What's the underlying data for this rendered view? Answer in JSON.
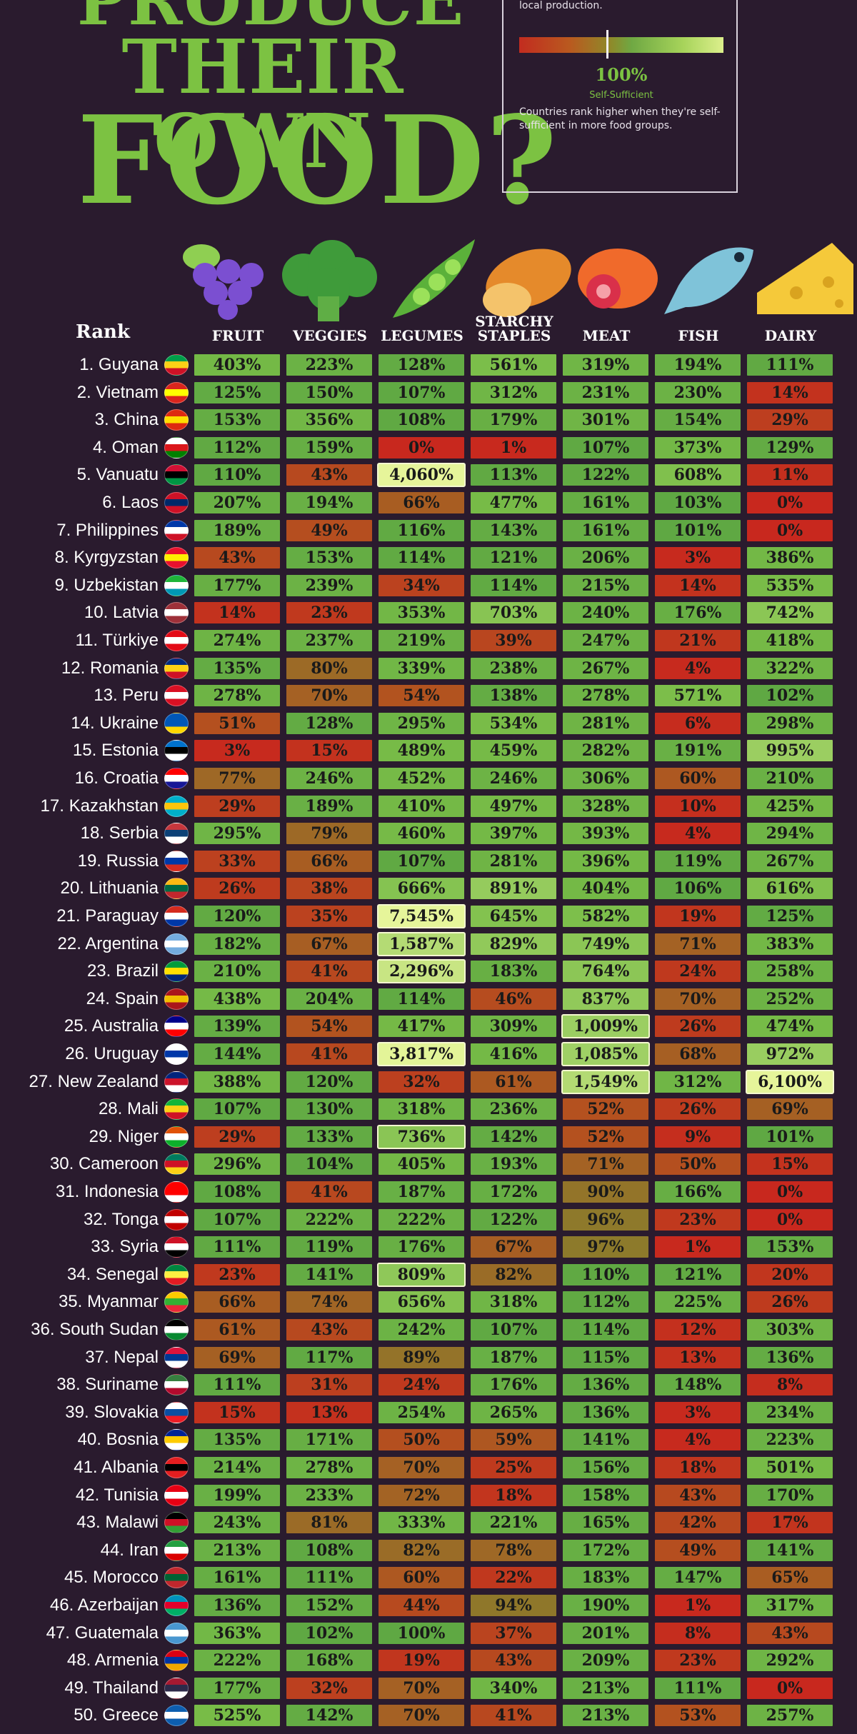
{
  "header": {
    "title_line1": "PRODUCE",
    "title_line2": "THEIR OWN",
    "title_line3": "FOOD?"
  },
  "legend": {
    "description": "percentage of domestic demand met by local production.",
    "scale_value": "100%",
    "scale_label": "Self-Sufficient",
    "note": "Countries rank higher when they're self-sufficient in more food groups.",
    "color_low": "#c22c1f",
    "color_mid": "#6fa843",
    "color_high": "#dcef8c"
  },
  "chart_data": {
    "type": "table",
    "rank_header": "Rank",
    "columns": [
      "FRUIT",
      "VEGGIES",
      "LEGUMES",
      "STARCHY STAPLES",
      "MEAT",
      "FISH",
      "DAIRY"
    ],
    "column_icons": [
      "grapes-icon",
      "broccoli-icon",
      "peas-icon",
      "bread-icon",
      "meat-icon",
      "fish-icon",
      "cheese-icon"
    ],
    "rows": [
      {
        "rank": "1. Guyana",
        "values": [
          403,
          223,
          128,
          561,
          319,
          194,
          111
        ]
      },
      {
        "rank": "2. Vietnam",
        "values": [
          125,
          150,
          107,
          312,
          231,
          230,
          14
        ]
      },
      {
        "rank": "3. China",
        "values": [
          153,
          356,
          108,
          179,
          301,
          154,
          29
        ]
      },
      {
        "rank": "4. Oman",
        "values": [
          112,
          159,
          0,
          1,
          107,
          373,
          129
        ]
      },
      {
        "rank": "5. Vanuatu",
        "values": [
          110,
          43,
          4060,
          113,
          122,
          608,
          11
        ]
      },
      {
        "rank": "6. Laos",
        "values": [
          207,
          194,
          66,
          477,
          161,
          103,
          0
        ]
      },
      {
        "rank": "7. Philippines",
        "values": [
          189,
          49,
          116,
          143,
          161,
          101,
          0
        ]
      },
      {
        "rank": "8. Kyrgyzstan",
        "values": [
          43,
          153,
          114,
          121,
          206,
          3,
          386
        ]
      },
      {
        "rank": "9. Uzbekistan",
        "values": [
          177,
          239,
          34,
          114,
          215,
          14,
          535
        ]
      },
      {
        "rank": "10. Latvia",
        "values": [
          14,
          23,
          353,
          703,
          240,
          176,
          742
        ]
      },
      {
        "rank": "11. Türkiye",
        "values": [
          274,
          237,
          219,
          39,
          247,
          21,
          418
        ]
      },
      {
        "rank": "12. Romania",
        "values": [
          135,
          80,
          339,
          238,
          267,
          4,
          322
        ]
      },
      {
        "rank": "13. Peru",
        "values": [
          278,
          70,
          54,
          138,
          278,
          571,
          102
        ]
      },
      {
        "rank": "14. Ukraine",
        "values": [
          51,
          128,
          295,
          534,
          281,
          6,
          298
        ]
      },
      {
        "rank": "15. Estonia",
        "values": [
          3,
          15,
          489,
          459,
          282,
          191,
          995
        ]
      },
      {
        "rank": "16. Croatia",
        "values": [
          77,
          246,
          452,
          246,
          306,
          60,
          210
        ]
      },
      {
        "rank": "17. Kazakhstan",
        "values": [
          29,
          189,
          410,
          497,
          328,
          10,
          425
        ]
      },
      {
        "rank": "18. Serbia",
        "values": [
          295,
          79,
          460,
          397,
          393,
          4,
          294
        ]
      },
      {
        "rank": "19. Russia",
        "values": [
          33,
          66,
          107,
          281,
          396,
          119,
          267
        ]
      },
      {
        "rank": "20. Lithuania",
        "values": [
          26,
          38,
          666,
          891,
          404,
          106,
          616
        ]
      },
      {
        "rank": "21. Paraguay",
        "values": [
          120,
          35,
          7545,
          645,
          582,
          19,
          125
        ]
      },
      {
        "rank": "22. Argentina",
        "values": [
          182,
          67,
          1587,
          829,
          749,
          71,
          383
        ]
      },
      {
        "rank": "23. Brazil",
        "values": [
          210,
          41,
          2296,
          183,
          764,
          24,
          258
        ]
      },
      {
        "rank": "24. Spain",
        "values": [
          438,
          204,
          114,
          46,
          837,
          70,
          252
        ]
      },
      {
        "rank": "25. Australia",
        "values": [
          139,
          54,
          417,
          309,
          1009,
          26,
          474
        ]
      },
      {
        "rank": "26. Uruguay",
        "values": [
          144,
          41,
          3817,
          416,
          1085,
          68,
          972
        ]
      },
      {
        "rank": "27. New Zealand",
        "values": [
          388,
          120,
          32,
          61,
          1549,
          312,
          6100
        ]
      },
      {
        "rank": "28. Mali",
        "values": [
          107,
          130,
          318,
          236,
          52,
          26,
          69
        ]
      },
      {
        "rank": "29. Niger",
        "values": [
          29,
          133,
          736,
          142,
          52,
          9,
          101
        ]
      },
      {
        "rank": "30. Cameroon",
        "values": [
          296,
          104,
          405,
          193,
          71,
          50,
          15
        ]
      },
      {
        "rank": "31. Indonesia",
        "values": [
          108,
          41,
          187,
          172,
          90,
          166,
          0
        ]
      },
      {
        "rank": "32. Tonga",
        "values": [
          107,
          222,
          222,
          122,
          96,
          23,
          0
        ]
      },
      {
        "rank": "33. Syria",
        "values": [
          111,
          119,
          176,
          67,
          97,
          1,
          153
        ]
      },
      {
        "rank": "34. Senegal",
        "values": [
          23,
          141,
          809,
          82,
          110,
          121,
          20
        ]
      },
      {
        "rank": "35. Myanmar",
        "values": [
          66,
          74,
          656,
          318,
          112,
          225,
          26
        ]
      },
      {
        "rank": "36. South Sudan",
        "values": [
          61,
          43,
          242,
          107,
          114,
          12,
          303
        ]
      },
      {
        "rank": "37. Nepal",
        "values": [
          69,
          117,
          89,
          187,
          115,
          13,
          136
        ]
      },
      {
        "rank": "38. Suriname",
        "values": [
          111,
          31,
          24,
          176,
          136,
          148,
          8
        ]
      },
      {
        "rank": "39. Slovakia",
        "values": [
          15,
          13,
          254,
          265,
          136,
          3,
          234
        ]
      },
      {
        "rank": "40. Bosnia",
        "values": [
          135,
          171,
          50,
          59,
          141,
          4,
          223
        ]
      },
      {
        "rank": "41. Albania",
        "values": [
          214,
          278,
          70,
          25,
          156,
          18,
          501
        ]
      },
      {
        "rank": "42. Tunisia",
        "values": [
          199,
          233,
          72,
          18,
          158,
          43,
          170
        ]
      },
      {
        "rank": "43. Malawi",
        "values": [
          243,
          81,
          333,
          221,
          165,
          42,
          17
        ]
      },
      {
        "rank": "44. Iran",
        "values": [
          213,
          108,
          82,
          78,
          172,
          49,
          141
        ]
      },
      {
        "rank": "45. Morocco",
        "values": [
          161,
          111,
          60,
          22,
          183,
          147,
          65
        ]
      },
      {
        "rank": "46. Azerbaijan",
        "values": [
          136,
          152,
          44,
          94,
          190,
          1,
          317
        ]
      },
      {
        "rank": "47. Guatemala",
        "values": [
          363,
          102,
          100,
          37,
          201,
          8,
          43
        ]
      },
      {
        "rank": "48. Armenia",
        "values": [
          222,
          168,
          19,
          43,
          209,
          23,
          292
        ]
      },
      {
        "rank": "49. Thailand",
        "values": [
          177,
          32,
          70,
          340,
          213,
          111,
          0
        ]
      },
      {
        "rank": "50. Greece",
        "values": [
          525,
          142,
          70,
          41,
          213,
          53,
          257
        ]
      }
    ]
  },
  "flags": [
    [
      "#009e49",
      "#fcd116",
      "#ce1126"
    ],
    [
      "#da251d",
      "#ffff00",
      "#da251d"
    ],
    [
      "#de2910",
      "#ffde00",
      "#de2910"
    ],
    [
      "#ffffff",
      "#db161b",
      "#008000"
    ],
    [
      "#d21034",
      "#000000",
      "#009543"
    ],
    [
      "#ce1126",
      "#002868",
      "#ce1126"
    ],
    [
      "#0038a8",
      "#ffffff",
      "#ce1126"
    ],
    [
      "#e8112d",
      "#ffef00",
      "#e8112d"
    ],
    [
      "#1eb53a",
      "#ffffff",
      "#0099b5"
    ],
    [
      "#9e3039",
      "#ffffff",
      "#9e3039"
    ],
    [
      "#e30a17",
      "#ffffff",
      "#e30a17"
    ],
    [
      "#002b7f",
      "#fcd116",
      "#ce1126"
    ],
    [
      "#d91023",
      "#ffffff",
      "#d91023"
    ],
    [
      "#0057b7",
      "#0057b7",
      "#ffd700"
    ],
    [
      "#0072ce",
      "#000000",
      "#ffffff"
    ],
    [
      "#ff0000",
      "#ffffff",
      "#171796"
    ],
    [
      "#00afca",
      "#fec50c",
      "#00afca"
    ],
    [
      "#c6363c",
      "#0c4076",
      "#ffffff"
    ],
    [
      "#ffffff",
      "#0039a6",
      "#d52b1e"
    ],
    [
      "#fdb913",
      "#006a44",
      "#c1272d"
    ],
    [
      "#d52b1e",
      "#ffffff",
      "#0038a8"
    ],
    [
      "#74acdf",
      "#ffffff",
      "#74acdf"
    ],
    [
      "#009c3b",
      "#ffdf00",
      "#002776"
    ],
    [
      "#aa151b",
      "#f1bf00",
      "#aa151b"
    ],
    [
      "#00008b",
      "#ffffff",
      "#ff0000"
    ],
    [
      "#ffffff",
      "#0038a8",
      "#ffffff"
    ],
    [
      "#00247d",
      "#cc142b",
      "#ffffff"
    ],
    [
      "#14b53a",
      "#fcd116",
      "#ce1126"
    ],
    [
      "#e05206",
      "#ffffff",
      "#0db02b"
    ],
    [
      "#007a5e",
      "#ce1126",
      "#fcd116"
    ],
    [
      "#ff0000",
      "#ff0000",
      "#ffffff"
    ],
    [
      "#c10000",
      "#ffffff",
      "#c10000"
    ],
    [
      "#ce1126",
      "#ffffff",
      "#000000"
    ],
    [
      "#00853f",
      "#fdef42",
      "#e31b23"
    ],
    [
      "#fecb00",
      "#34b233",
      "#ea2839"
    ],
    [
      "#000000",
      "#ffffff",
      "#078930"
    ],
    [
      "#dc143c",
      "#003893",
      "#ffffff"
    ],
    [
      "#377e3f",
      "#ffffff",
      "#b40a2d"
    ],
    [
      "#ffffff",
      "#0b4ea2",
      "#ee1c25"
    ],
    [
      "#002395",
      "#fecb00",
      "#ffffff"
    ],
    [
      "#e41e20",
      "#000000",
      "#e41e20"
    ],
    [
      "#e70013",
      "#ffffff",
      "#e70013"
    ],
    [
      "#000000",
      "#ce1126",
      "#339e35"
    ],
    [
      "#239f40",
      "#ffffff",
      "#da0000"
    ],
    [
      "#c1272d",
      "#006233",
      "#c1272d"
    ],
    [
      "#0092bc",
      "#e4002b",
      "#00af66"
    ],
    [
      "#4997d0",
      "#ffffff",
      "#4997d0"
    ],
    [
      "#d90012",
      "#0033a0",
      "#f2a800"
    ],
    [
      "#a51931",
      "#2d2a4a",
      "#ffffff"
    ],
    [
      "#0d5eaf",
      "#ffffff",
      "#0d5eaf"
    ]
  ]
}
